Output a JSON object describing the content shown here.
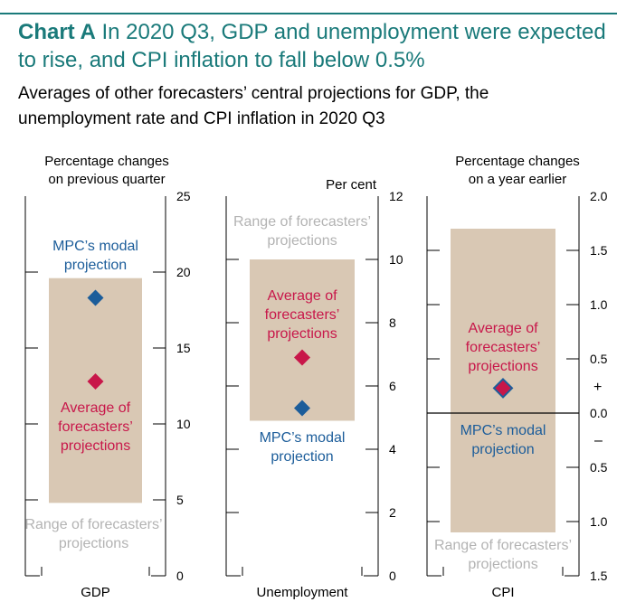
{
  "title": {
    "lead": "Chart A",
    "text": "In 2020 Q3, GDP and unemployment were expected to rise, and CPI inflation to fall below 0.5%"
  },
  "subtitle": "Averages of other forecasters’ central projections for GDP, the unemployment rate and CPI inflation in 2020 Q3",
  "colors": {
    "range": "#d9c8b4",
    "average": "#c8174a",
    "modal": "#1c5d9a",
    "title": "#1a7a7a"
  },
  "chart_data": [
    {
      "type": "range-and-points",
      "name": "GDP",
      "axis_label": "Percentage changes on previous quarter",
      "ylim": [
        0,
        25
      ],
      "ticks": [
        {
          "value": 0,
          "label": "0"
        },
        {
          "value": 5,
          "label": "5"
        },
        {
          "value": 10,
          "label": "10"
        },
        {
          "value": 15,
          "label": "15"
        },
        {
          "value": 20,
          "label": "20"
        },
        {
          "value": 25,
          "label": "25"
        }
      ],
      "range": [
        4.8,
        19.6
      ],
      "range_label": "Range of forecasters’ projections",
      "average": 12.8,
      "average_label": "Average of forecasters’ projections",
      "modal": 18.3,
      "modal_label": "MPC’s modal projection"
    },
    {
      "type": "range-and-points",
      "name": "Unemployment",
      "axis_label": "Per cent",
      "ylim": [
        0,
        12
      ],
      "ticks": [
        {
          "value": 0,
          "label": "0"
        },
        {
          "value": 2,
          "label": "2"
        },
        {
          "value": 4,
          "label": "4"
        },
        {
          "value": 6,
          "label": "6"
        },
        {
          "value": 8,
          "label": "8"
        },
        {
          "value": 10,
          "label": "10"
        },
        {
          "value": 12,
          "label": "12"
        }
      ],
      "range": [
        4.9,
        10.0
      ],
      "range_label": "Range of forecasters’ projections",
      "average": 6.9,
      "average_label": "Average of forecasters’ projections",
      "modal": 5.3,
      "modal_label": "MPC’s modal projection"
    },
    {
      "type": "range-and-points",
      "name": "CPI",
      "axis_label": "Percentage changes on a year earlier",
      "ylim": [
        -1.5,
        2.0
      ],
      "ticks": [
        {
          "value": -1.5,
          "label": "1.5"
        },
        {
          "value": -1.0,
          "label": "1.0"
        },
        {
          "value": -0.5,
          "label": "0.5"
        },
        {
          "value": 0.0,
          "label": "0.0"
        },
        {
          "value": 0.5,
          "label": "0.5"
        },
        {
          "value": 1.0,
          "label": "1.0"
        },
        {
          "value": 1.5,
          "label": "1.5"
        },
        {
          "value": 2.0,
          "label": "2.0"
        }
      ],
      "plus_sign": "+",
      "minus_sign": "–",
      "range": [
        -1.1,
        1.7
      ],
      "range_label": "Range of forecasters’ projections",
      "average": 0.23,
      "average_label": "Average of forecasters’ projections",
      "modal": 0.23,
      "modal_label": "MPC’s modal projection"
    }
  ]
}
